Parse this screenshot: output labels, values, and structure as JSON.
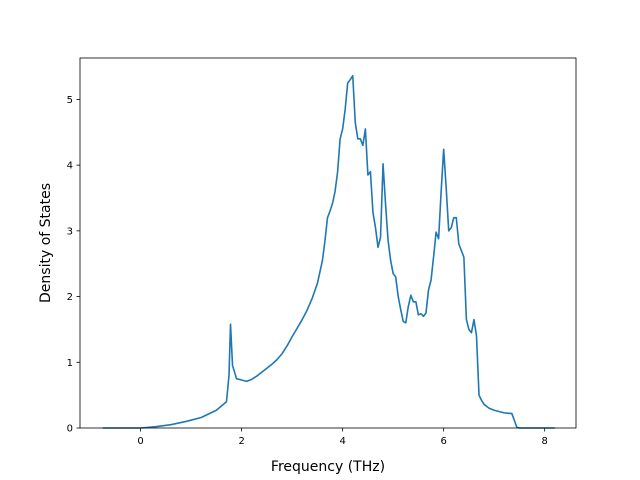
{
  "chart_data": {
    "type": "line",
    "title": "",
    "xlabel": "Frequency (THz)",
    "ylabel": "Density of States",
    "xlim": [
      -1.2,
      8.62
    ],
    "ylim": [
      0,
      5.63
    ],
    "xticks": [
      0,
      2,
      4,
      6,
      8
    ],
    "yticks": [
      0,
      1,
      2,
      3,
      4,
      5
    ],
    "grid": false,
    "legend": "none",
    "series": [
      {
        "color": "#1f77b4",
        "x": [
          -0.75,
          0.0,
          0.3,
          0.6,
          0.9,
          1.2,
          1.5,
          1.7,
          1.75,
          1.78,
          1.82,
          1.9,
          2.0,
          2.1,
          2.2,
          2.3,
          2.4,
          2.5,
          2.6,
          2.7,
          2.8,
          2.9,
          3.0,
          3.1,
          3.2,
          3.3,
          3.4,
          3.5,
          3.6,
          3.65,
          3.7,
          3.75,
          3.8,
          3.85,
          3.9,
          3.95,
          4.0,
          4.05,
          4.1,
          4.15,
          4.2,
          4.25,
          4.3,
          4.35,
          4.4,
          4.45,
          4.5,
          4.55,
          4.6,
          4.65,
          4.7,
          4.75,
          4.8,
          4.85,
          4.9,
          4.95,
          5.0,
          5.05,
          5.1,
          5.15,
          5.2,
          5.25,
          5.3,
          5.35,
          5.4,
          5.45,
          5.5,
          5.55,
          5.6,
          5.65,
          5.7,
          5.75,
          5.8,
          5.85,
          5.9,
          5.95,
          6.0,
          6.05,
          6.1,
          6.15,
          6.2,
          6.25,
          6.3,
          6.35,
          6.4,
          6.45,
          6.5,
          6.55,
          6.6,
          6.65,
          6.7,
          6.75,
          6.8,
          6.9,
          7.0,
          7.2,
          7.35,
          7.45,
          7.5,
          8.2
        ],
        "y": [
          0,
          0,
          0.02,
          0.05,
          0.1,
          0.16,
          0.27,
          0.4,
          0.8,
          1.58,
          0.95,
          0.75,
          0.73,
          0.71,
          0.74,
          0.79,
          0.85,
          0.91,
          0.97,
          1.04,
          1.13,
          1.25,
          1.39,
          1.52,
          1.65,
          1.8,
          1.98,
          2.2,
          2.55,
          2.85,
          3.2,
          3.3,
          3.42,
          3.6,
          3.9,
          4.4,
          4.55,
          4.85,
          5.25,
          5.3,
          5.36,
          4.65,
          4.4,
          4.4,
          4.3,
          4.55,
          3.85,
          3.9,
          3.28,
          3.05,
          2.75,
          2.9,
          4.02,
          3.4,
          2.85,
          2.55,
          2.35,
          2.3,
          2.0,
          1.8,
          1.62,
          1.6,
          1.85,
          2.02,
          1.92,
          1.92,
          1.72,
          1.74,
          1.7,
          1.75,
          2.1,
          2.25,
          2.6,
          2.98,
          2.88,
          3.6,
          4.24,
          3.65,
          3.0,
          3.05,
          3.2,
          3.2,
          2.8,
          2.7,
          2.6,
          1.65,
          1.5,
          1.45,
          1.65,
          1.4,
          0.5,
          0.42,
          0.36,
          0.3,
          0.27,
          0.23,
          0.22,
          0.01,
          0,
          0
        ]
      }
    ]
  }
}
